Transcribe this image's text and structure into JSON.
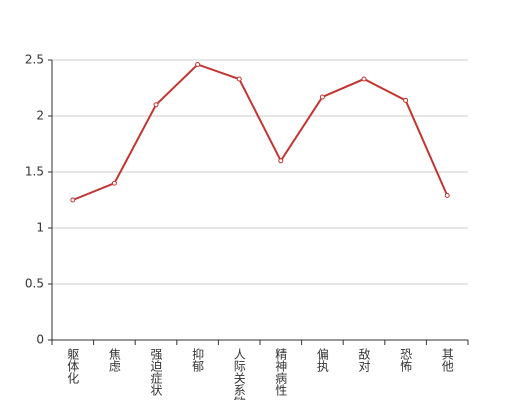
{
  "chart_data": {
    "type": "line",
    "categories": [
      "躯体化",
      "焦虑",
      "强迫症状",
      "抑郁",
      "人际关系敏感",
      "精神病性",
      "偏执",
      "敌对",
      "恐怖",
      "其他"
    ],
    "values": [
      1.25,
      1.4,
      2.1,
      2.46,
      2.33,
      1.6,
      2.17,
      2.33,
      2.14,
      1.29
    ],
    "color": "#c23531",
    "ylim": [
      0,
      2.5
    ],
    "yticks": [
      0,
      0.5,
      1,
      1.5,
      2,
      2.5
    ],
    "grid": true
  }
}
